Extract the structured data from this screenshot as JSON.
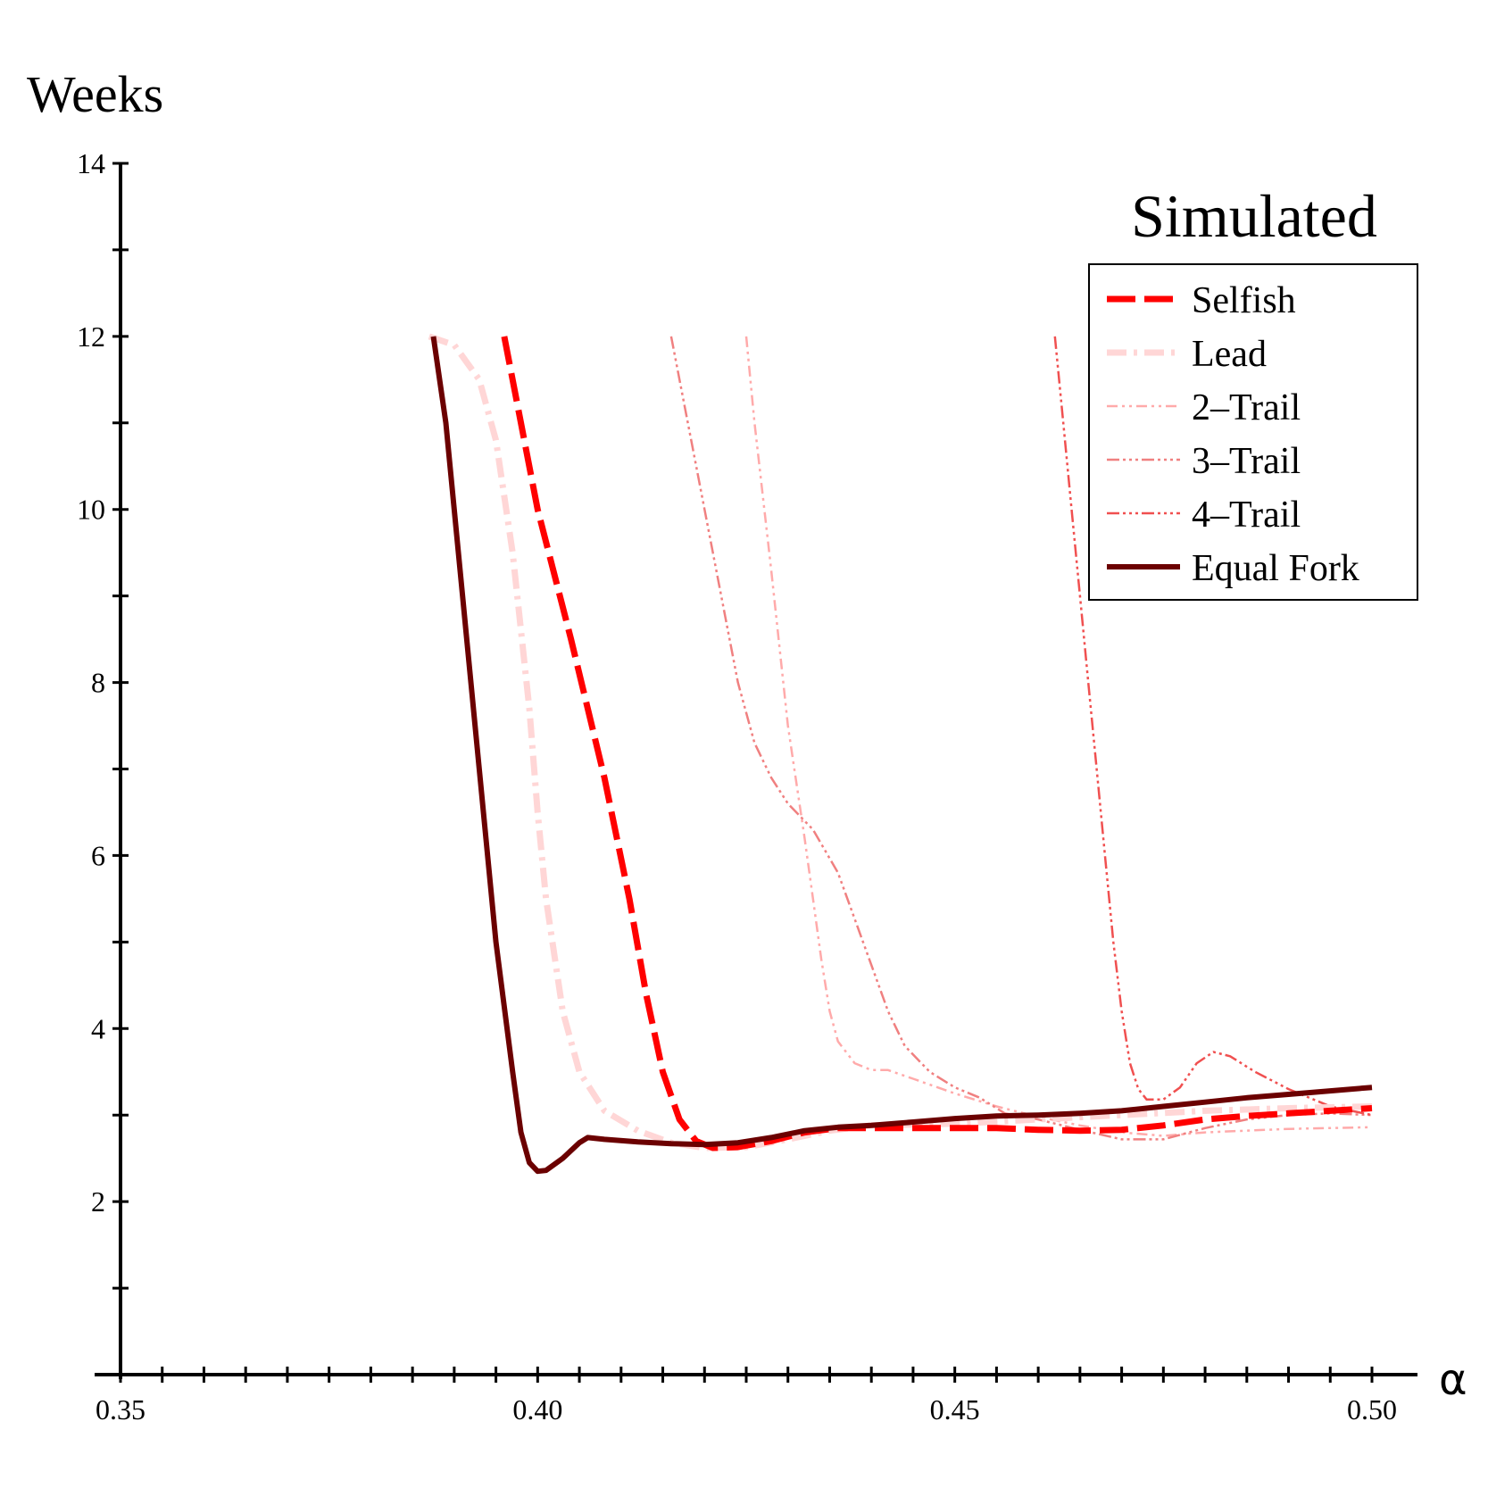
{
  "chart_data": {
    "type": "line",
    "title": "Simulated",
    "xlabel": "α",
    "ylabel": "Weeks",
    "xlim": [
      0.35,
      0.5
    ],
    "ylim": [
      0,
      14
    ],
    "x_ticks": [
      0.35,
      0.4,
      0.45,
      0.5
    ],
    "x_tick_labels": [
      "0.35",
      "0.40",
      "0.45",
      "0.50"
    ],
    "y_ticks": [
      2,
      4,
      6,
      8,
      10,
      12,
      14
    ],
    "y_tick_labels": [
      "2",
      "4",
      "6",
      "8",
      "10",
      "12",
      "14"
    ],
    "grid": false,
    "legend_position": "top-right",
    "series": [
      {
        "name": "Selfish",
        "color": "#ff0000",
        "style": "long-dash",
        "points": [
          [
            0.396,
            12.0
          ],
          [
            0.398,
            11.0
          ],
          [
            0.4,
            10.0
          ],
          [
            0.404,
            8.5
          ],
          [
            0.408,
            6.9
          ],
          [
            0.411,
            5.5
          ],
          [
            0.413,
            4.4
          ],
          [
            0.415,
            3.5
          ],
          [
            0.417,
            2.95
          ],
          [
            0.419,
            2.7
          ],
          [
            0.421,
            2.62
          ],
          [
            0.424,
            2.63
          ],
          [
            0.428,
            2.7
          ],
          [
            0.432,
            2.8
          ],
          [
            0.436,
            2.85
          ],
          [
            0.44,
            2.85
          ],
          [
            0.445,
            2.85
          ],
          [
            0.45,
            2.85
          ],
          [
            0.455,
            2.85
          ],
          [
            0.46,
            2.83
          ],
          [
            0.465,
            2.82
          ],
          [
            0.47,
            2.83
          ],
          [
            0.475,
            2.88
          ],
          [
            0.48,
            2.95
          ],
          [
            0.485,
            2.99
          ],
          [
            0.49,
            3.02
          ],
          [
            0.495,
            3.05
          ],
          [
            0.5,
            3.08
          ]
        ]
      },
      {
        "name": "Lead",
        "color": "#ffd6d6",
        "style": "dash-dot",
        "points": [
          [
            0.387,
            12.0
          ],
          [
            0.39,
            11.9
          ],
          [
            0.393,
            11.5
          ],
          [
            0.395,
            10.8
          ],
          [
            0.397,
            9.5
          ],
          [
            0.399,
            7.7
          ],
          [
            0.4,
            6.5
          ],
          [
            0.401,
            5.5
          ],
          [
            0.403,
            4.2
          ],
          [
            0.405,
            3.5
          ],
          [
            0.408,
            3.05
          ],
          [
            0.412,
            2.82
          ],
          [
            0.416,
            2.68
          ],
          [
            0.42,
            2.62
          ],
          [
            0.425,
            2.63
          ],
          [
            0.43,
            2.72
          ],
          [
            0.435,
            2.82
          ],
          [
            0.44,
            2.88
          ],
          [
            0.45,
            2.9
          ],
          [
            0.46,
            2.95
          ],
          [
            0.47,
            3.0
          ],
          [
            0.48,
            3.05
          ],
          [
            0.49,
            3.08
          ],
          [
            0.5,
            3.1
          ]
        ]
      },
      {
        "name": "2–Trail",
        "color": "#ffaaaa",
        "style": "dash-dot-dot",
        "points": [
          [
            0.425,
            12.0
          ],
          [
            0.426,
            11.0
          ],
          [
            0.428,
            9.3
          ],
          [
            0.43,
            7.5
          ],
          [
            0.432,
            6.2
          ],
          [
            0.433,
            5.5
          ],
          [
            0.434,
            4.8
          ],
          [
            0.435,
            4.2
          ],
          [
            0.436,
            3.85
          ],
          [
            0.438,
            3.6
          ],
          [
            0.44,
            3.52
          ],
          [
            0.442,
            3.52
          ],
          [
            0.445,
            3.42
          ],
          [
            0.45,
            3.25
          ],
          [
            0.455,
            3.1
          ],
          [
            0.46,
            2.98
          ],
          [
            0.465,
            2.88
          ],
          [
            0.47,
            2.8
          ],
          [
            0.475,
            2.76
          ],
          [
            0.48,
            2.8
          ],
          [
            0.49,
            2.84
          ],
          [
            0.5,
            2.86
          ]
        ]
      },
      {
        "name": "3–Trail",
        "color": "#f08080",
        "style": "dash-dot-dot-dot",
        "points": [
          [
            0.416,
            12.0
          ],
          [
            0.418,
            11.0
          ],
          [
            0.42,
            10.0
          ],
          [
            0.422,
            9.0
          ],
          [
            0.424,
            8.0
          ],
          [
            0.426,
            7.3
          ],
          [
            0.428,
            6.9
          ],
          [
            0.43,
            6.6
          ],
          [
            0.433,
            6.3
          ],
          [
            0.436,
            5.8
          ],
          [
            0.439,
            5.0
          ],
          [
            0.442,
            4.2
          ],
          [
            0.444,
            3.8
          ],
          [
            0.447,
            3.5
          ],
          [
            0.45,
            3.32
          ],
          [
            0.453,
            3.2
          ],
          [
            0.456,
            3.02
          ],
          [
            0.46,
            2.95
          ],
          [
            0.465,
            2.83
          ],
          [
            0.47,
            2.72
          ],
          [
            0.475,
            2.72
          ],
          [
            0.48,
            2.85
          ],
          [
            0.485,
            2.95
          ],
          [
            0.49,
            3.0
          ],
          [
            0.495,
            3.02
          ],
          [
            0.5,
            3.0
          ]
        ]
      },
      {
        "name": "4–Trail",
        "color": "#f05050",
        "style": "dash-dot-dot-dot",
        "points": [
          [
            0.462,
            12.0
          ],
          [
            0.463,
            11.0
          ],
          [
            0.464,
            10.0
          ],
          [
            0.465,
            9.0
          ],
          [
            0.466,
            8.0
          ],
          [
            0.467,
            7.0
          ],
          [
            0.468,
            6.0
          ],
          [
            0.469,
            5.0
          ],
          [
            0.47,
            4.2
          ],
          [
            0.471,
            3.6
          ],
          [
            0.472,
            3.3
          ],
          [
            0.473,
            3.18
          ],
          [
            0.475,
            3.18
          ],
          [
            0.477,
            3.32
          ],
          [
            0.479,
            3.6
          ],
          [
            0.481,
            3.73
          ],
          [
            0.483,
            3.68
          ],
          [
            0.486,
            3.5
          ],
          [
            0.49,
            3.3
          ],
          [
            0.495,
            3.1
          ],
          [
            0.5,
            3.0
          ]
        ]
      },
      {
        "name": "Equal Fork",
        "color": "#6b0000",
        "style": "solid",
        "points": [
          [
            0.3875,
            12.0
          ],
          [
            0.389,
            11.0
          ],
          [
            0.391,
            9.0
          ],
          [
            0.393,
            7.0
          ],
          [
            0.395,
            5.0
          ],
          [
            0.397,
            3.5
          ],
          [
            0.398,
            2.8
          ],
          [
            0.399,
            2.45
          ],
          [
            0.4,
            2.35
          ],
          [
            0.401,
            2.36
          ],
          [
            0.403,
            2.5
          ],
          [
            0.405,
            2.68
          ],
          [
            0.406,
            2.74
          ],
          [
            0.408,
            2.72
          ],
          [
            0.412,
            2.69
          ],
          [
            0.416,
            2.67
          ],
          [
            0.42,
            2.66
          ],
          [
            0.424,
            2.68
          ],
          [
            0.428,
            2.74
          ],
          [
            0.432,
            2.82
          ],
          [
            0.436,
            2.86
          ],
          [
            0.44,
            2.88
          ],
          [
            0.445,
            2.92
          ],
          [
            0.45,
            2.96
          ],
          [
            0.455,
            2.99
          ],
          [
            0.46,
            3.0
          ],
          [
            0.465,
            3.02
          ],
          [
            0.47,
            3.05
          ],
          [
            0.475,
            3.1
          ],
          [
            0.48,
            3.15
          ],
          [
            0.485,
            3.2
          ],
          [
            0.49,
            3.24
          ],
          [
            0.495,
            3.28
          ],
          [
            0.5,
            3.32
          ]
        ]
      }
    ]
  }
}
